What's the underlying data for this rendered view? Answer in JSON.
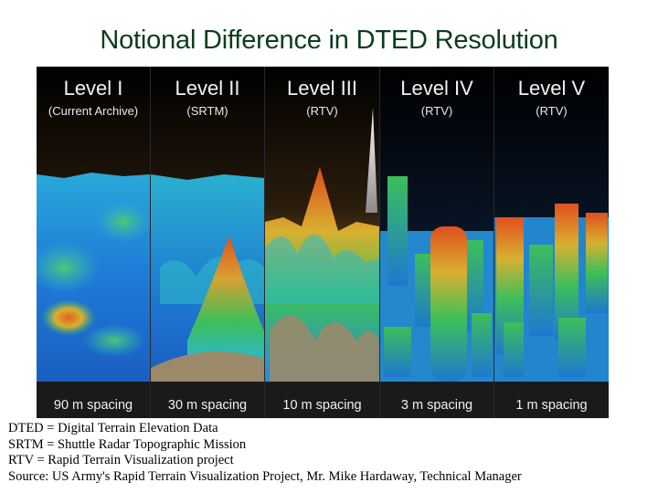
{
  "title": "Notional Difference in DTED Resolution",
  "panels": [
    {
      "level": "Level I",
      "source": "(Current Archive)",
      "spacing": "90 m spacing"
    },
    {
      "level": "Level II",
      "source": "(SRTM)",
      "spacing": "30 m spacing"
    },
    {
      "level": "Level III",
      "source": "(RTV)",
      "spacing": "10 m spacing"
    },
    {
      "level": "Level IV",
      "source": "(RTV)",
      "spacing": "3 m spacing"
    },
    {
      "level": "Level V",
      "source": "(RTV)",
      "spacing": "1 m spacing"
    }
  ],
  "notes": [
    "DTED = Digital Terrain Elevation Data",
    "SRTM = Shuttle Radar Topographic Mission",
    "RTV = Rapid Terrain Visualization project",
    "Source: US Army's Rapid Terrain Visualization Project, Mr. Mike Hardaway, Technical Manager"
  ],
  "colors": {
    "title": "#0a3d1c",
    "sky_top": "#000000",
    "sky_bottom": "#3a2a14",
    "terrain_low": "#1e6fd0",
    "terrain_mid": "#2fb8c8",
    "terrain_green": "#3cbf5a",
    "terrain_high": "#e0641e",
    "ground": "#9a8a6a"
  }
}
